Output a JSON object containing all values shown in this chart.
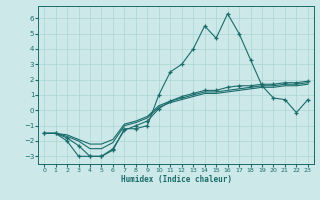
{
  "xlabel": "Humidex (Indice chaleur)",
  "background_color": "#cce8e8",
  "grid_color": "#aad4d4",
  "line_color": "#1a6b6b",
  "xlim": [
    -0.5,
    23.5
  ],
  "ylim": [
    -3.5,
    6.8
  ],
  "xticks": [
    0,
    1,
    2,
    3,
    4,
    5,
    6,
    7,
    8,
    9,
    10,
    11,
    12,
    13,
    14,
    15,
    16,
    17,
    18,
    19,
    20,
    21,
    22,
    23
  ],
  "yticks": [
    -3,
    -2,
    -1,
    0,
    1,
    2,
    3,
    4,
    5,
    6
  ],
  "line1_x": [
    0,
    1,
    2,
    3,
    4,
    5,
    6,
    7,
    8,
    9,
    10,
    11,
    12,
    13,
    14,
    15,
    16,
    17,
    18,
    19,
    20,
    21,
    22,
    23
  ],
  "line1_y": [
    -1.5,
    -1.5,
    -2.0,
    -3.0,
    -3.0,
    -3.0,
    -2.6,
    -1.2,
    -1.2,
    -1.0,
    1.0,
    2.5,
    3.0,
    4.0,
    5.5,
    4.7,
    6.3,
    5.0,
    3.3,
    1.6,
    0.8,
    0.7,
    -0.15,
    0.7
  ],
  "line2_x": [
    0,
    1,
    2,
    3,
    4,
    5,
    6,
    7,
    8,
    9,
    10,
    11,
    12,
    13,
    14,
    15,
    16,
    17,
    18,
    19,
    20,
    21,
    22,
    23
  ],
  "line2_y": [
    -1.5,
    -1.5,
    -1.8,
    -2.3,
    -3.0,
    -3.0,
    -2.5,
    -1.3,
    -1.0,
    -0.7,
    0.1,
    0.6,
    0.9,
    1.1,
    1.3,
    1.3,
    1.5,
    1.6,
    1.6,
    1.7,
    1.7,
    1.8,
    1.8,
    1.9
  ],
  "line3_x": [
    0,
    1,
    2,
    3,
    4,
    5,
    6,
    7,
    8,
    9,
    10,
    11,
    12,
    13,
    14,
    15,
    16,
    17,
    18,
    19,
    20,
    21,
    22,
    23
  ],
  "line3_y": [
    -1.5,
    -1.5,
    -1.7,
    -2.0,
    -2.5,
    -2.5,
    -2.1,
    -1.0,
    -0.8,
    -0.5,
    0.2,
    0.5,
    0.7,
    0.9,
    1.1,
    1.1,
    1.2,
    1.3,
    1.4,
    1.5,
    1.5,
    1.6,
    1.6,
    1.7
  ],
  "line4_x": [
    0,
    1,
    2,
    3,
    4,
    5,
    6,
    7,
    8,
    9,
    10,
    11,
    12,
    13,
    14,
    15,
    16,
    17,
    18,
    19,
    20,
    21,
    22,
    23
  ],
  "line4_y": [
    -1.5,
    -1.5,
    -1.6,
    -1.9,
    -2.2,
    -2.2,
    -1.9,
    -0.9,
    -0.7,
    -0.4,
    0.3,
    0.6,
    0.8,
    1.0,
    1.2,
    1.2,
    1.3,
    1.4,
    1.5,
    1.6,
    1.6,
    1.7,
    1.7,
    1.8
  ]
}
